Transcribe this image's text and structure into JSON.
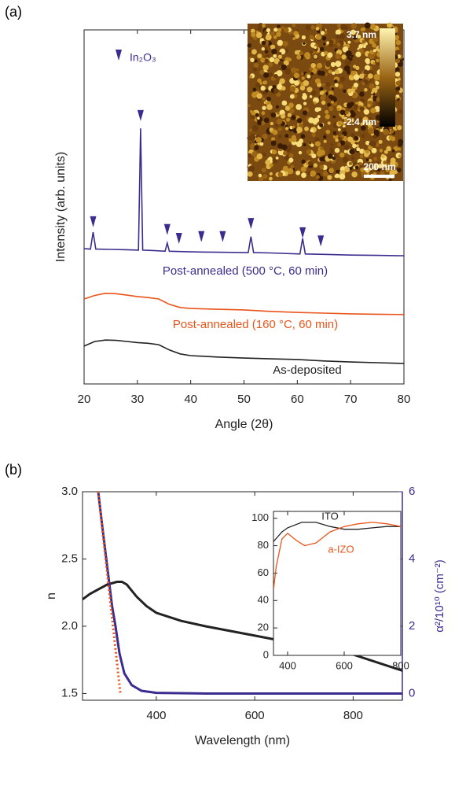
{
  "chart_data": [
    {
      "type": "line",
      "panel_label": "(a)",
      "x_label": "Angle (2θ)",
      "y_label": "Intensity (arb. units)",
      "xlim": [
        20,
        80
      ],
      "xticks": [
        20,
        30,
        40,
        50,
        60,
        70,
        80
      ],
      "ylim": [
        0,
        100
      ],
      "series": [
        {
          "name": "Post-annealed (500 °C, 60 min)",
          "color": "#3b2d8f",
          "x": [
            20,
            21.2,
            21.7,
            22.2,
            25,
            28,
            30.2,
            30.6,
            31,
            33,
            35.2,
            35.6,
            36,
            40,
            45,
            50.8,
            51.3,
            51.8,
            55,
            60.5,
            61,
            61.5,
            65,
            70,
            75,
            80
          ],
          "values": [
            38.2,
            38.1,
            42.9,
            38.1,
            38,
            37.9,
            37.8,
            72.2,
            37.8,
            37.7,
            37.5,
            39.8,
            37.5,
            37.3,
            37.2,
            37.1,
            41.6,
            37.1,
            37,
            36.7,
            41.1,
            36.7,
            36.6,
            36.4,
            36.3,
            36.2
          ]
        },
        {
          "name": "Post-annealed (160 °C, 60 min)",
          "color": "#e8541a",
          "x": [
            20,
            22,
            24,
            26,
            28,
            30,
            32,
            34,
            36,
            38,
            40,
            45,
            50,
            55,
            60,
            65,
            70,
            75,
            80
          ],
          "values": [
            24,
            25,
            25.6,
            25.5,
            25.1,
            24.7,
            24.4,
            24,
            22.5,
            21.6,
            21.3,
            21.1,
            20.9,
            20.5,
            20.2,
            20,
            19.8,
            19.7,
            19.6
          ]
        },
        {
          "name": "As-deposited",
          "color": "#222222",
          "x": [
            20,
            22,
            24,
            26,
            28,
            30,
            32,
            34,
            36,
            38,
            40,
            45,
            50,
            55,
            60,
            65,
            70,
            75,
            80
          ],
          "values": [
            10.7,
            12,
            12.4,
            12.3,
            12,
            11.7,
            11.5,
            11.1,
            9.6,
            8.5,
            8,
            7.6,
            7.3,
            7.1,
            6.9,
            6.5,
            6.2,
            6,
            5.8
          ]
        }
      ],
      "peak_markers": {
        "name": "In₂O₃",
        "color": "#3b2d8f",
        "x": [
          21.7,
          30.6,
          35.6,
          37.8,
          42,
          46,
          51.3,
          61,
          64.4
        ],
        "values": [
          45.8,
          75.8,
          43.6,
          41.1,
          41.6,
          41.6,
          45.3,
          42.7,
          40.4
        ]
      },
      "afm_inset": {
        "max_label": "3.7 nm",
        "min_label": "-2.4 nm",
        "scale_label": "200 nm"
      }
    },
    {
      "type": "line",
      "panel_label": "(b)",
      "x_label": "Wavelength (nm)",
      "y_label": "n",
      "y2_label": "α²/10¹⁰ (cm⁻²)",
      "y2_color": "#3b2d8f",
      "xlim": [
        250,
        900
      ],
      "xticks": [
        400,
        600,
        800
      ],
      "ylim": [
        1.45,
        3.0
      ],
      "yticks": [
        {
          "value": 1.5,
          "label": "1.5"
        },
        {
          "value": 2,
          "label": "2.0"
        },
        {
          "value": 2.5,
          "label": "2.5"
        },
        {
          "value": 3,
          "label": "3.0"
        }
      ],
      "y2lim": [
        -0.2,
        6
      ],
      "y2ticks": [
        0,
        2,
        4,
        6
      ],
      "series": [
        {
          "color": "#222222",
          "axis": "y",
          "x": [
            250,
            265,
            280,
            300,
            320,
            330,
            340,
            360,
            380,
            400,
            450,
            500,
            600,
            700,
            800,
            900
          ],
          "values": [
            2.2,
            2.24,
            2.27,
            2.31,
            2.33,
            2.33,
            2.31,
            2.22,
            2.15,
            2.1,
            2.04,
            2.0,
            1.93,
            1.86,
            1.79,
            1.67
          ]
        },
        {
          "color": "#3b2d8f",
          "axis": "y2",
          "x": [
            282,
            290,
            300,
            310,
            317,
            325,
            335,
            350,
            370,
            400,
            500,
            700,
            900
          ],
          "values": [
            6,
            5,
            3.8,
            2.6,
            2,
            1.2,
            0.6,
            0.25,
            0.08,
            0.02,
            0,
            0,
            0
          ]
        }
      ],
      "fit_line": {
        "color": "#e8541a",
        "axis": "y2",
        "x": [
          282,
          327
        ],
        "values": [
          6,
          0
        ]
      }
    },
    {
      "type": "line",
      "xlim": [
        350,
        800
      ],
      "xticks": [
        400,
        600,
        800
      ],
      "ylim": [
        0,
        105
      ],
      "yticks": [
        0,
        20,
        40,
        60,
        80,
        100
      ],
      "series": [
        {
          "name": "ITO",
          "color": "#222222",
          "x": [
            350,
            380,
            400,
            450,
            500,
            550,
            600,
            650,
            700,
            750,
            800
          ],
          "values": [
            83,
            90,
            93,
            97,
            97,
            94,
            92,
            92,
            93,
            94,
            94
          ]
        },
        {
          "name": "a-IZO",
          "color": "#e8541a",
          "x": [
            350,
            360,
            380,
            400,
            430,
            460,
            500,
            550,
            600,
            650,
            700,
            750,
            800
          ],
          "values": [
            48,
            65,
            85,
            89,
            84,
            80,
            82,
            90,
            94,
            96,
            97,
            96,
            94
          ]
        }
      ]
    }
  ]
}
